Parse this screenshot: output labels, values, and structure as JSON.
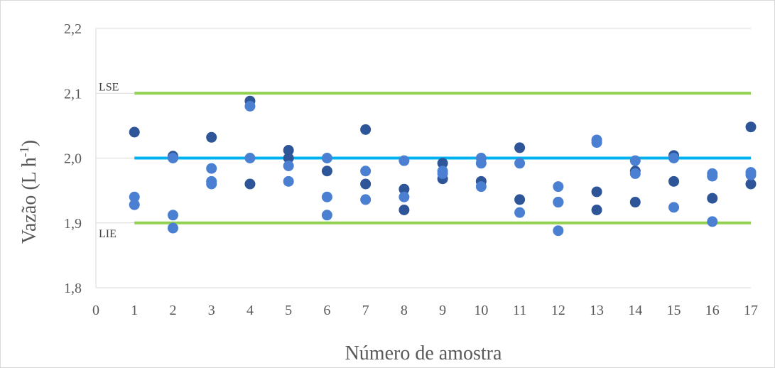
{
  "chart_data": {
    "type": "scatter",
    "title": "",
    "xlabel": "Número de amostra",
    "ylabel": "Vazão (L h-1)",
    "ylabel_parts": {
      "main": "Vazão (L h",
      "sup": "-1",
      "close": ")"
    },
    "xlim": [
      0,
      17
    ],
    "ylim": [
      1.8,
      2.2
    ],
    "x_ticks": [
      "0",
      "1",
      "2",
      "3",
      "4",
      "5",
      "6",
      "7",
      "8",
      "9",
      "10",
      "11",
      "12",
      "13",
      "14",
      "15",
      "16",
      "17"
    ],
    "y_ticks": [
      {
        "value": 1.8,
        "label": "1,8"
      },
      {
        "value": 1.9,
        "label": "1,9"
      },
      {
        "value": 2.0,
        "label": "2,0"
      },
      {
        "value": 2.1,
        "label": "2,1"
      },
      {
        "value": 2.2,
        "label": "2,2"
      }
    ],
    "grid": "horizontal",
    "reference_lines": [
      {
        "label": "LSE",
        "value": 2.1,
        "color": "#92d050"
      },
      {
        "label": "LIE",
        "value": 1.9,
        "color": "#92d050"
      },
      {
        "label": "",
        "value": 2.0,
        "color": "#00b0f0"
      }
    ],
    "series": [
      {
        "color": "#2e5597",
        "points": [
          [
            1,
            2.04
          ],
          [
            2,
            2.003
          ],
          [
            3,
            2.032
          ],
          [
            4,
            2.088
          ],
          [
            4,
            1.96
          ],
          [
            5,
            2.012
          ],
          [
            5,
            2.0
          ],
          [
            6,
            1.98
          ],
          [
            7,
            2.044
          ],
          [
            7,
            1.96
          ],
          [
            8,
            1.952
          ],
          [
            8,
            1.92
          ],
          [
            9,
            1.992
          ],
          [
            9,
            1.968
          ],
          [
            10,
            1.964
          ],
          [
            11,
            2.016
          ],
          [
            11,
            1.936
          ],
          [
            12,
            1.932
          ],
          [
            13,
            1.948
          ],
          [
            13,
            1.92
          ],
          [
            14,
            1.98
          ],
          [
            14,
            1.932
          ],
          [
            15,
            2.004
          ],
          [
            15,
            1.964
          ],
          [
            16,
            1.938
          ],
          [
            17,
            2.048
          ],
          [
            17,
            1.96
          ]
        ]
      },
      {
        "color": "#4a7fd1",
        "points": [
          [
            1,
            1.94
          ],
          [
            1,
            1.928
          ],
          [
            2,
            2.0
          ],
          [
            2,
            1.912
          ],
          [
            2,
            1.892
          ],
          [
            3,
            1.984
          ],
          [
            3,
            1.964
          ],
          [
            3,
            1.96
          ],
          [
            4,
            2.08
          ],
          [
            4,
            2.0
          ],
          [
            5,
            1.988
          ],
          [
            5,
            1.964
          ],
          [
            6,
            2.0
          ],
          [
            6,
            1.94
          ],
          [
            6,
            1.912
          ],
          [
            7,
            1.98
          ],
          [
            7,
            1.936
          ],
          [
            8,
            1.996
          ],
          [
            8,
            1.94
          ],
          [
            9,
            1.98
          ],
          [
            9,
            1.976
          ],
          [
            10,
            2.0
          ],
          [
            10,
            1.992
          ],
          [
            10,
            1.956
          ],
          [
            11,
            1.992
          ],
          [
            11,
            1.916
          ],
          [
            12,
            1.956
          ],
          [
            12,
            1.932
          ],
          [
            12,
            1.888
          ],
          [
            13,
            2.028
          ],
          [
            13,
            2.024
          ],
          [
            14,
            1.996
          ],
          [
            14,
            1.976
          ],
          [
            15,
            2.0
          ],
          [
            15,
            1.924
          ],
          [
            16,
            1.976
          ],
          [
            16,
            1.972
          ],
          [
            16,
            1.902
          ],
          [
            17,
            1.978
          ],
          [
            17,
            1.974
          ]
        ]
      }
    ]
  }
}
